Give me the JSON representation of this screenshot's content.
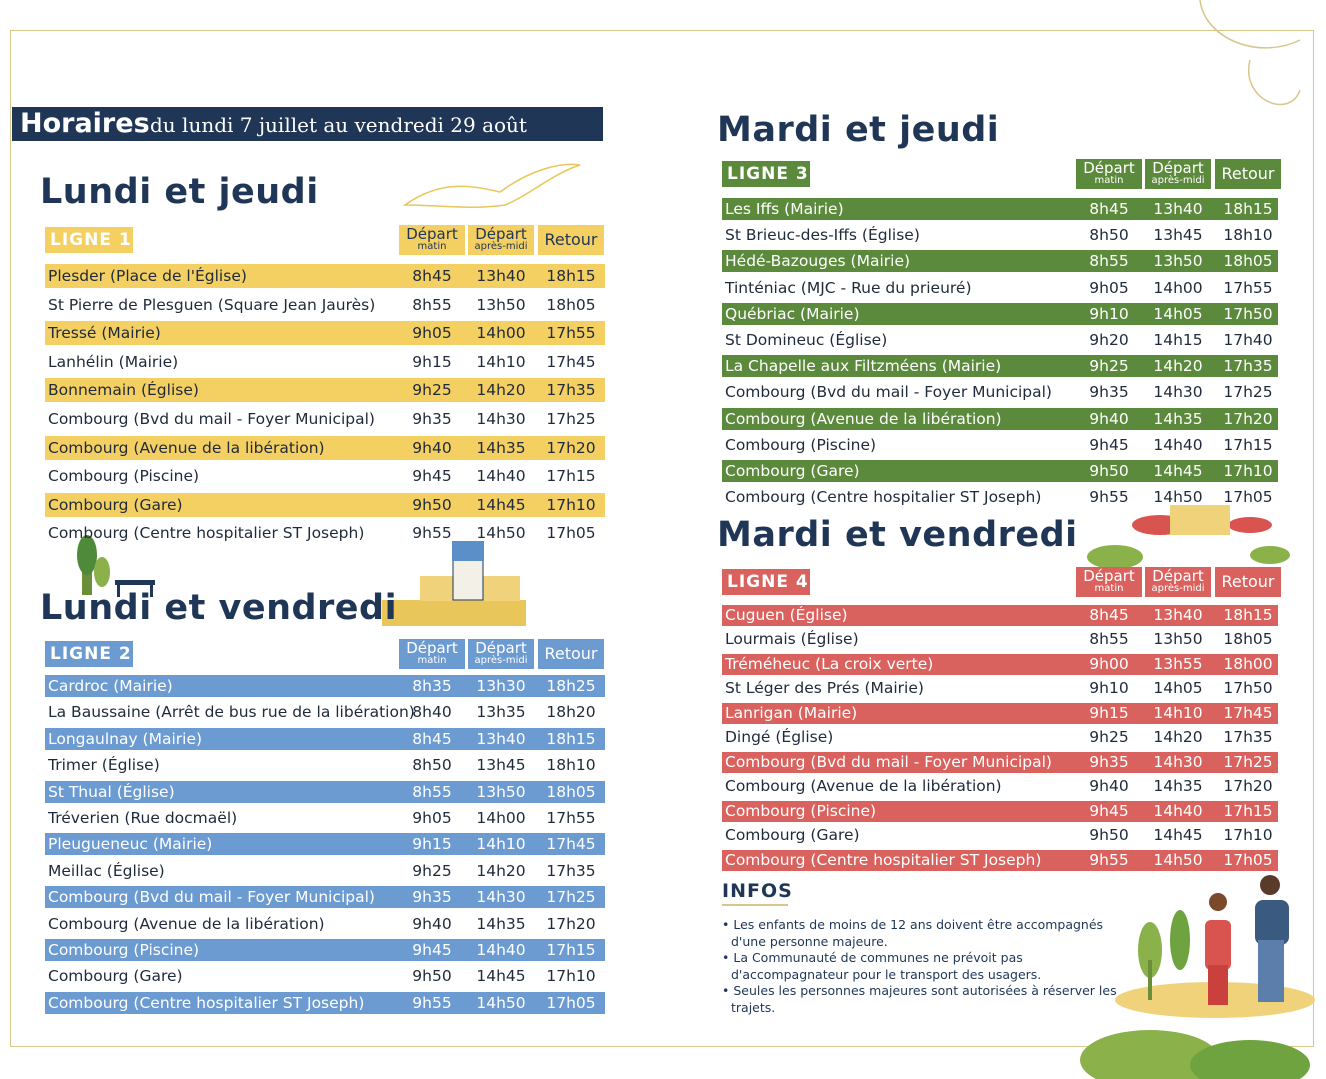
{
  "header": {
    "title": "Horaires",
    "subtitle": "du lundi 7 juillet au vendredi 29 août"
  },
  "sections": [
    {
      "heading": "Lundi et jeudi",
      "line": "LIGNE 1",
      "columns": [
        {
          "main": "Départ",
          "sub": "matin"
        },
        {
          "main": "Départ",
          "sub": "après-midi"
        },
        {
          "main": "Retour"
        }
      ],
      "rows": [
        [
          "Plesder (Place de l'Église)",
          "8h45",
          "13h40",
          "18h15"
        ],
        [
          "St Pierre de Plesguen (Square Jean Jaurès)",
          "8h55",
          "13h50",
          "18h05"
        ],
        [
          "Tressé (Mairie)",
          "9h05",
          "14h00",
          "17h55"
        ],
        [
          "Lanhélin (Mairie)",
          "9h15",
          "14h10",
          "17h45"
        ],
        [
          "Bonnemain (Église)",
          "9h25",
          "14h20",
          "17h35"
        ],
        [
          "Combourg (Bvd du mail - Foyer Municipal)",
          "9h35",
          "14h30",
          "17h25"
        ],
        [
          "Combourg (Avenue de la libération)",
          "9h40",
          "14h35",
          "17h20"
        ],
        [
          "Combourg (Piscine)",
          "9h45",
          "14h40",
          "17h15"
        ],
        [
          "Combourg (Gare)",
          "9h50",
          "14h45",
          "17h10"
        ],
        [
          "Combourg (Centre hospitalier ST Joseph)",
          "9h55",
          "14h50",
          "17h05"
        ]
      ]
    },
    {
      "heading": "Lundi et vendredi",
      "line": "LIGNE 2",
      "columns": [
        {
          "main": "Départ",
          "sub": "matin"
        },
        {
          "main": "Départ",
          "sub": "après-midi"
        },
        {
          "main": "Retour"
        }
      ],
      "rows": [
        [
          "Cardroc (Mairie)",
          "8h35",
          "13h30",
          "18h25"
        ],
        [
          "La Baussaine  (Arrêt de bus rue de la libération)",
          "8h40",
          "13h35",
          "18h20"
        ],
        [
          "Longaulnay (Mairie)",
          "8h45",
          "13h40",
          "18h15"
        ],
        [
          "Trimer (Église)",
          "8h50",
          "13h45",
          "18h10"
        ],
        [
          "St Thual (Église)",
          "8h55",
          "13h50",
          "18h05"
        ],
        [
          "Tréverien (Rue docmaël)",
          "9h05",
          "14h00",
          "17h55"
        ],
        [
          "Pleugueneuc (Mairie)",
          "9h15",
          "14h10",
          "17h45"
        ],
        [
          "Meillac (Église)",
          "9h25",
          "14h20",
          "17h35"
        ],
        [
          "Combourg (Bvd du mail - Foyer Municipal)",
          "9h35",
          "14h30",
          "17h25"
        ],
        [
          "Combourg (Avenue de la libération)",
          "9h40",
          "14h35",
          "17h20"
        ],
        [
          "Combourg (Piscine)",
          "9h45",
          "14h40",
          "17h15"
        ],
        [
          "Combourg (Gare)",
          "9h50",
          "14h45",
          "17h10"
        ],
        [
          "Combourg (Centre hospitalier ST Joseph)",
          "9h55",
          "14h50",
          "17h05"
        ]
      ]
    },
    {
      "heading": "Mardi et jeudi",
      "line": "LIGNE 3",
      "columns": [
        {
          "main": "Départ",
          "sub": "matin"
        },
        {
          "main": "Départ",
          "sub": "après-midi"
        },
        {
          "main": "Retour"
        }
      ],
      "rows": [
        [
          "Les Iffs (Mairie)",
          "8h45",
          "13h40",
          "18h15"
        ],
        [
          "St Brieuc-des-Iffs (Église)",
          "8h50",
          "13h45",
          "18h10"
        ],
        [
          "Hédé-Bazouges (Mairie)",
          "8h55",
          "13h50",
          "18h05"
        ],
        [
          "Tinténiac (MJC - Rue du prieuré)",
          "9h05",
          "14h00",
          "17h55"
        ],
        [
          "Québriac (Mairie)",
          "9h10",
          "14h05",
          "17h50"
        ],
        [
          "St Domineuc (Église)",
          "9h20",
          "14h15",
          "17h40"
        ],
        [
          "La Chapelle aux Filtzméens  (Mairie)",
          "9h25",
          "14h20",
          "17h35"
        ],
        [
          "Combourg (Bvd du mail - Foyer Municipal)",
          "9h35",
          "14h30",
          "17h25"
        ],
        [
          "Combourg (Avenue de la libération)",
          "9h40",
          "14h35",
          "17h20"
        ],
        [
          "Combourg (Piscine)",
          "9h45",
          "14h40",
          "17h15"
        ],
        [
          "Combourg (Gare)",
          "9h50",
          "14h45",
          "17h10"
        ],
        [
          "Combourg (Centre hospitalier ST Joseph)",
          "9h55",
          "14h50",
          "17h05"
        ]
      ]
    },
    {
      "heading": "Mardi et vendredi",
      "line": "LIGNE 4",
      "columns": [
        {
          "main": "Départ",
          "sub": "matin"
        },
        {
          "main": "Départ",
          "sub": "après-midi"
        },
        {
          "main": "Retour"
        }
      ],
      "rows": [
        [
          "Cuguen (Église)",
          "8h45",
          "13h40",
          "18h15"
        ],
        [
          "Lourmais (Église)",
          "8h55",
          "13h50",
          "18h05"
        ],
        [
          "Tréméheuc  (La croix verte)",
          "9h00",
          "13h55",
          "18h00"
        ],
        [
          "St Léger des Prés (Mairie)",
          "9h10",
          "14h05",
          "17h50"
        ],
        [
          "Lanrigan  (Mairie)",
          "9h15",
          "14h10",
          "17h45"
        ],
        [
          "Dingé (Église)",
          "9h25",
          "14h20",
          "17h35"
        ],
        [
          "Combourg (Bvd du mail - Foyer Municipal)",
          "9h35",
          "14h30",
          "17h25"
        ],
        [
          "Combourg (Avenue de la libération)",
          "9h40",
          "14h35",
          "17h20"
        ],
        [
          "Combourg (Piscine)",
          "9h45",
          "14h40",
          "17h15"
        ],
        [
          "Combourg (Gare)",
          "9h50",
          "14h45",
          "17h10"
        ],
        [
          "Combourg (Centre hospitalier ST Joseph)",
          "9h55",
          "14h50",
          "17h05"
        ]
      ]
    }
  ],
  "infos": {
    "title": "INFOS",
    "items": [
      "Les enfants de moins de 12 ans doivent être accompagnés d'une personne majeure.",
      "La Communauté de communes ne prévoit pas d'accompagnateur pour le transport des usagers.",
      "Seules les personnes majeures sont autorisées à réserver les trajets."
    ]
  }
}
